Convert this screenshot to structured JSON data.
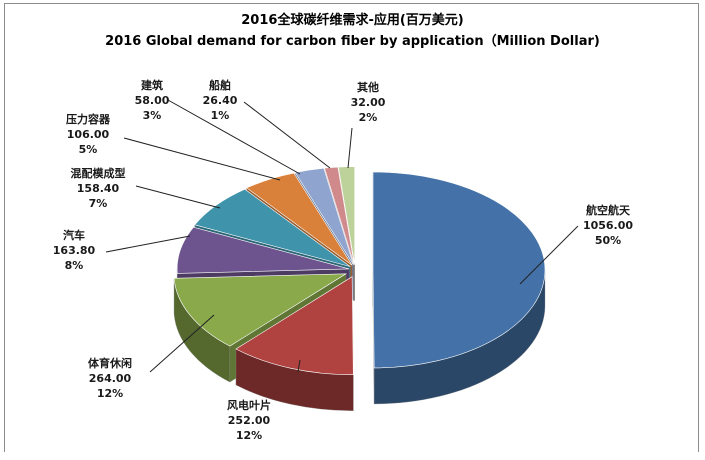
{
  "chart_data": {
    "type": "pie",
    "title": "2016全球碳纤维需求-应用(百万美元)",
    "subtitle": "2016 Global demand for carbon fiber by application（Million Dollar)",
    "categories": [
      "航空航天",
      "风电叶片",
      "体育休闲",
      "汽车",
      "混配模成型",
      "压力容器",
      "建筑",
      "船舶",
      "其他"
    ],
    "values": [
      1056.0,
      252.0,
      264.0,
      163.8,
      158.4,
      106.0,
      58.0,
      26.4,
      32.0
    ],
    "value_labels": [
      "1056.00",
      "252.00",
      "264.00",
      "163.80",
      "158.40",
      "106.00",
      "58.00",
      "26.40",
      "32.00"
    ],
    "percent_labels": [
      "50%",
      "12%",
      "12%",
      "8%",
      "7%",
      "5%",
      "3%",
      "1%",
      "2%"
    ],
    "colors": [
      "#4472a8",
      "#b0423f",
      "#89a94a",
      "#6e548f",
      "#3f93ab",
      "#d9813a",
      "#8fa5cf",
      "#d08a8b",
      "#bdd29a"
    ],
    "exploded": true,
    "style": "3d",
    "legend": "none"
  }
}
